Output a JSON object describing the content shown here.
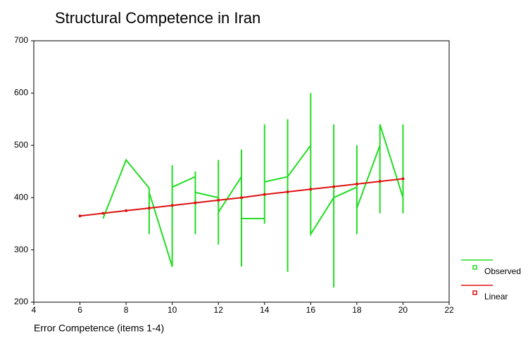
{
  "chart_data": {
    "type": "line",
    "title": "Structural Competence in Iran",
    "x_label": "Error Competence (items 1-4)",
    "xlim": [
      4,
      22
    ],
    "xticks": [
      4,
      6,
      8,
      10,
      12,
      14,
      16,
      18,
      20,
      22
    ],
    "ylim": [
      200,
      700
    ],
    "yticks": [
      200,
      300,
      400,
      500,
      600,
      700
    ],
    "legend": "right",
    "series": [
      {
        "name": "Observed",
        "color": "#22dd22",
        "x": [
          7,
          8,
          9,
          9,
          9,
          10,
          10,
          10,
          11,
          11,
          11,
          11,
          12,
          12,
          12,
          12,
          13,
          13,
          13,
          13,
          14,
          14,
          14,
          14,
          15,
          15,
          15,
          15,
          16,
          16,
          16,
          17,
          17,
          17,
          17,
          18,
          18,
          18,
          18,
          19,
          19,
          19,
          19,
          20,
          20,
          20
        ],
        "values": [
          360,
          472,
          418,
          330,
          410,
          268,
          462,
          420,
          440,
          450,
          330,
          410,
          400,
          472,
          310,
          372,
          440,
          492,
          268,
          360,
          360,
          350,
          540,
          430,
          440,
          550,
          258,
          440,
          500,
          600,
          330,
          400,
          540,
          228,
          400,
          420,
          500,
          330,
          380,
          500,
          540,
          370,
          540,
          400,
          540,
          370
        ]
      },
      {
        "name": "Linear",
        "color": "#dd1111",
        "markers": true,
        "x": [
          6,
          7,
          8,
          9,
          10,
          11,
          12,
          13,
          14,
          15,
          16,
          17,
          18,
          19,
          20
        ],
        "values": [
          365,
          370,
          375,
          380,
          385,
          390,
          395,
          400,
          406,
          411,
          416,
          421,
          426,
          431,
          436
        ]
      }
    ]
  }
}
